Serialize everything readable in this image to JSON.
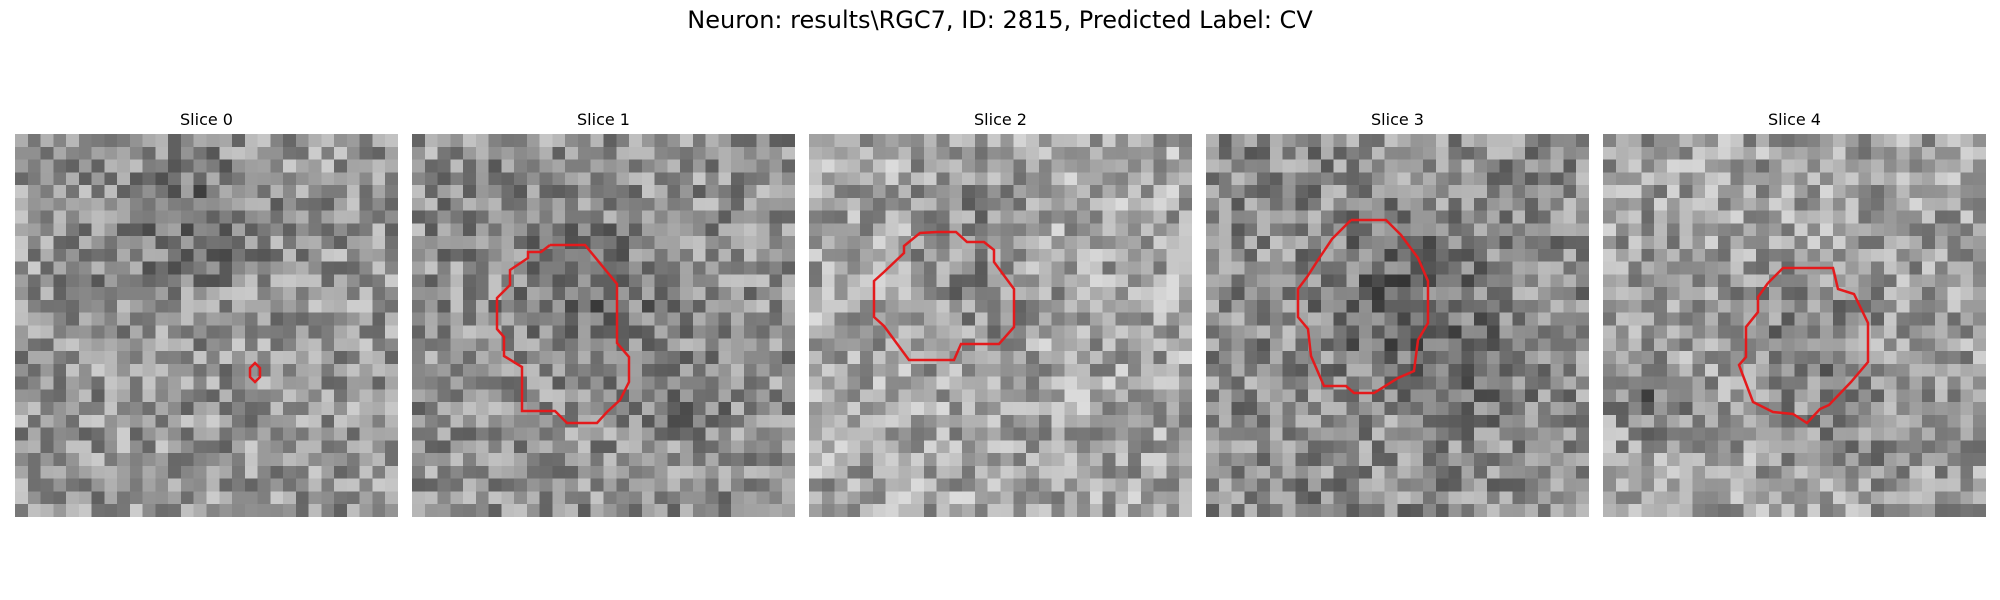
{
  "figure": {
    "title": "Neuron: results\\RGC7, ID: 2815, Predicted Label: CV"
  },
  "panels": [
    {
      "title": "Slice 0"
    },
    {
      "title": "Slice 1"
    },
    {
      "title": "Slice 2"
    },
    {
      "title": "Slice 3"
    },
    {
      "title": "Slice 4"
    }
  ],
  "colors": {
    "contour": "#e41a1c",
    "colormap": "gray"
  }
}
